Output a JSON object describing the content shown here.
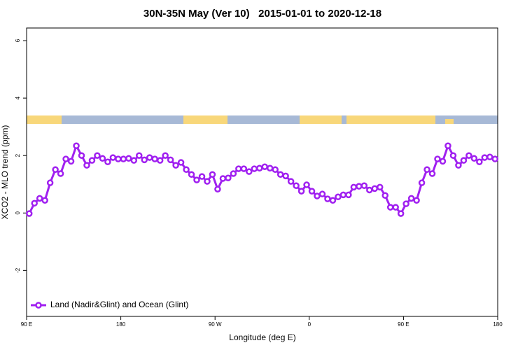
{
  "chart_data": {
    "type": "line",
    "title": "30N-35N May (Ver 10)   2015-01-01 to 2020-12-18",
    "x_label": "Longitude (deg E)",
    "y_label": "XCO2 - MLO trend (ppm)",
    "x": [
      92.5,
      97.5,
      102.5,
      107.5,
      112.5,
      117.5,
      122.5,
      127.5,
      132.5,
      137.5,
      142.5,
      147.5,
      152.5,
      157.5,
      162.5,
      167.5,
      172.5,
      177.5,
      182.5,
      187.5,
      192.5,
      197.5,
      202.5,
      207.5,
      212.5,
      217.5,
      222.5,
      227.5,
      232.5,
      237.5,
      242.5,
      247.5,
      252.5,
      257.5,
      262.5,
      267.5,
      272.5,
      277.5,
      282.5,
      287.5,
      292.5,
      297.5,
      302.5,
      307.5,
      312.5,
      317.5,
      322.5,
      327.5,
      332.5,
      337.5,
      342.5,
      347.5,
      352.5,
      357.5,
      362.5,
      367.5,
      372.5,
      377.5,
      382.5,
      387.5,
      392.5,
      397.5,
      402.5,
      407.5,
      412.5,
      417.5,
      422.5,
      427.5,
      432.5,
      437.5,
      442.5,
      447.5,
      452.5,
      457.5,
      462.5,
      467.5,
      472.5,
      477.5,
      482.5,
      487.5,
      492.5,
      497.5,
      502.5,
      507.5,
      512.5,
      517.5,
      522.5,
      527.5,
      532.5,
      537.5
    ],
    "series": [
      {
        "name": "Land (Nadir&Glint) and Ocean (Glint)",
        "color": "#a020f0",
        "values": [
          -0.02,
          0.34,
          0.51,
          0.44,
          1.05,
          1.51,
          1.37,
          1.88,
          1.8,
          2.34,
          2.0,
          1.66,
          1.83,
          2.0,
          1.9,
          1.78,
          1.93,
          1.88,
          1.88,
          1.9,
          1.83,
          2.0,
          1.85,
          1.93,
          1.88,
          1.83,
          2.0,
          1.85,
          1.66,
          1.76,
          1.51,
          1.34,
          1.15,
          1.27,
          1.1,
          1.34,
          0.83,
          1.2,
          1.22,
          1.37,
          1.54,
          1.54,
          1.44,
          1.54,
          1.56,
          1.61,
          1.56,
          1.51,
          1.34,
          1.29,
          1.1,
          0.95,
          0.76,
          0.98,
          0.76,
          0.59,
          0.66,
          0.49,
          0.44,
          0.56,
          0.63,
          0.63,
          0.9,
          0.93,
          0.95,
          0.8,
          0.85,
          0.9,
          0.61,
          0.2,
          0.2,
          -0.02,
          0.32,
          0.51,
          0.44,
          1.05,
          1.51,
          1.37,
          1.88,
          1.8,
          2.34,
          2.0,
          1.66,
          1.83,
          2.0,
          1.9,
          1.78,
          1.93,
          1.95,
          1.88
        ]
      }
    ],
    "xlim": [
      90,
      540
    ],
    "xticks": [
      {
        "value": 90,
        "label": "90 E"
      },
      180,
      {
        "value": 270,
        "label": "90 W"
      },
      {
        "value": 360,
        "label": "0"
      },
      {
        "value": 450,
        "label": "90 E"
      },
      {
        "value": 540,
        "label": "180"
      }
    ],
    "ylim": [
      -3.6,
      6.44
    ],
    "yticks": [
      -2,
      0,
      2,
      4,
      6
    ],
    "legend": "bottom-left"
  }
}
